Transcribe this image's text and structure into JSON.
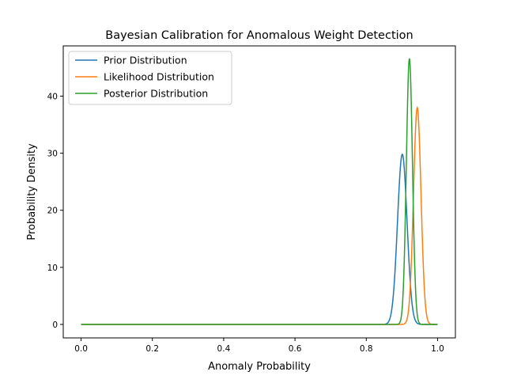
{
  "chart_data": {
    "type": "line",
    "title": "Bayesian Calibration for Anomalous Weight Detection",
    "xlabel": "Anomaly Probability",
    "ylabel": "Probability Density",
    "xlim": [
      -0.05,
      1.05
    ],
    "ylim": [
      -2.36,
      48.8
    ],
    "x_range": [
      0.0,
      1.0
    ],
    "xticks": [
      0.0,
      0.2,
      0.4,
      0.6,
      0.8,
      1.0
    ],
    "xtick_labels": [
      "0.0",
      "0.2",
      "0.4",
      "0.6",
      "0.8",
      "1.0"
    ],
    "yticks": [
      0,
      10,
      20,
      30,
      40
    ],
    "ytick_labels": [
      "0",
      "10",
      "20",
      "30",
      "40"
    ],
    "grid": false,
    "legend_position": "top-left",
    "series": [
      {
        "name": "Prior Distribution",
        "color": "#1f77b4",
        "shape": "gaussian",
        "mean": 0.901,
        "peak_density": 29.8
      },
      {
        "name": "Likelihood Distribution",
        "color": "#ff7f0e",
        "shape": "gaussian",
        "mean": 0.943,
        "peak_density": 38.0
      },
      {
        "name": "Posterior Distribution",
        "color": "#2ca02c",
        "shape": "gaussian",
        "mean": 0.921,
        "peak_density": 46.6
      }
    ]
  }
}
